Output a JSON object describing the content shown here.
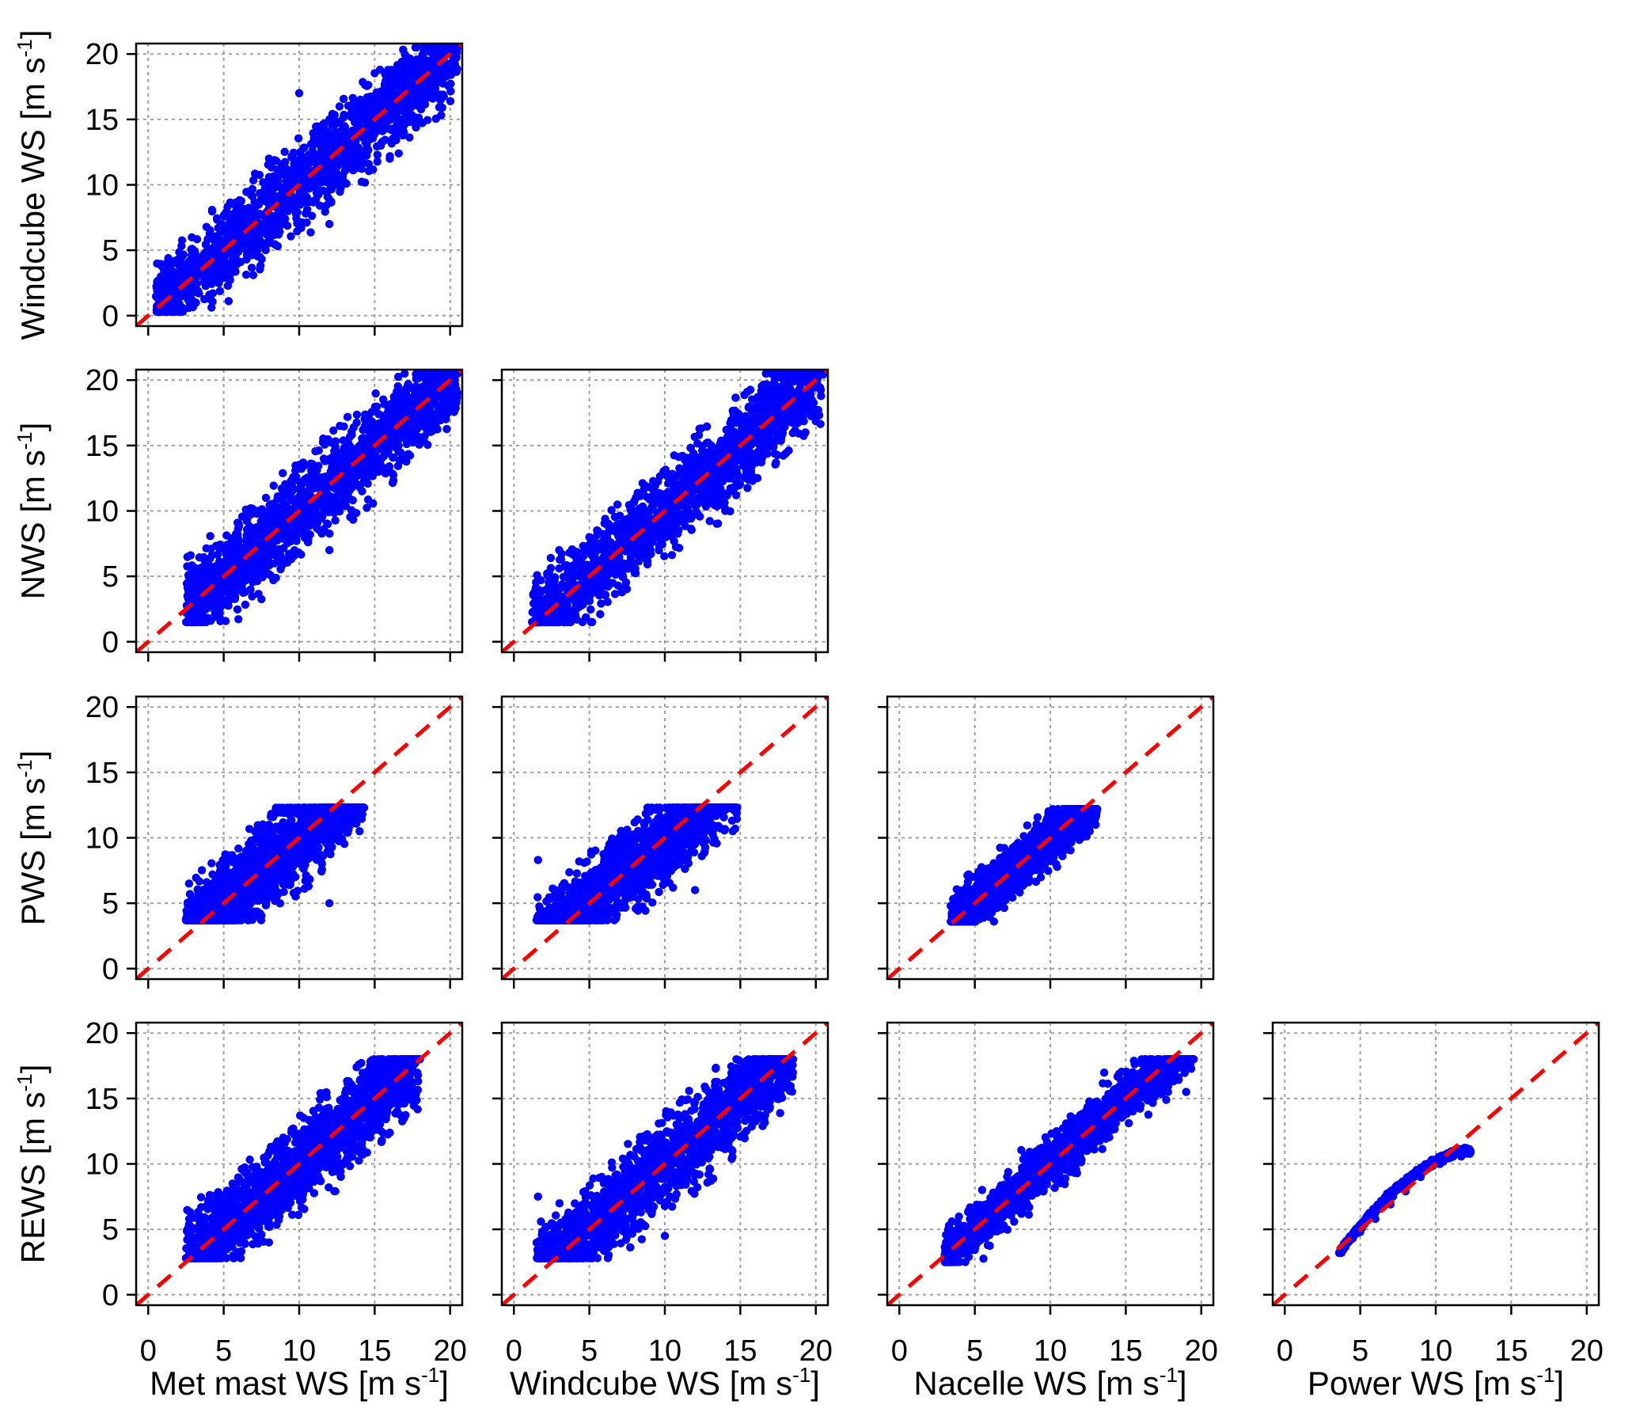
{
  "colors": {
    "points": "#0000ff",
    "identity_line": "#ff0000",
    "grid": "#a0a0a0",
    "frame": "#000000"
  },
  "axis_titles": {
    "x": [
      "Met mast WS [m s",
      "Windcube WS [m s",
      "Nacelle WS [m s",
      "Power WS [m s"
    ],
    "y": [
      "Windcube WS [m s",
      "NWS [m s",
      "PWS [m s",
      "REWS [m s"
    ],
    "unit_superscript": "-1",
    "unit_close": "]"
  },
  "chart_data": {
    "type": "scatter",
    "layout": "lower-triangular scatter-plot matrix",
    "grid": true,
    "identity_line": {
      "style": "dashed",
      "slope": 1,
      "intercept": 0
    },
    "xlim": [
      0,
      20
    ],
    "ylim": [
      0,
      20
    ],
    "ticks": [
      0,
      5,
      10,
      15,
      20
    ],
    "panels": [
      {
        "row": "Windcube WS",
        "col": "Met mast WS",
        "x_range": [
          0.5,
          20.5
        ],
        "y_range": [
          0.3,
          20.5
        ],
        "approx_points": [
          [
            1,
            0.6
          ],
          [
            3,
            2
          ],
          [
            5,
            4
          ],
          [
            7,
            6
          ],
          [
            9,
            8
          ],
          [
            11,
            10
          ],
          [
            13,
            12
          ],
          [
            15,
            14.5
          ],
          [
            17,
            17
          ],
          [
            19,
            19
          ],
          [
            8,
            12
          ],
          [
            12,
            7
          ],
          [
            10,
            17
          ],
          [
            16,
            12
          ]
        ]
      },
      {
        "row": "NWS",
        "col": "Met mast WS",
        "x_range": [
          2.5,
          20.5
        ],
        "y_range": [
          1.5,
          20.5
        ],
        "approx_points": [
          [
            2.6,
            3.5
          ],
          [
            4,
            3
          ],
          [
            6,
            6
          ],
          [
            8,
            8
          ],
          [
            10,
            10
          ],
          [
            12,
            11
          ],
          [
            14,
            13
          ],
          [
            16,
            15
          ],
          [
            18,
            18
          ],
          [
            20,
            19
          ],
          [
            6,
            9
          ],
          [
            12,
            7
          ]
        ]
      },
      {
        "row": "NWS",
        "col": "Windcube WS",
        "x_range": [
          1.2,
          20.5
        ],
        "y_range": [
          1.5,
          20.5
        ],
        "approx_points": [
          [
            1.5,
            4
          ],
          [
            3,
            7
          ],
          [
            5,
            8
          ],
          [
            7,
            9
          ],
          [
            9,
            10
          ],
          [
            11,
            11
          ],
          [
            13,
            12
          ],
          [
            15,
            14
          ],
          [
            17,
            16
          ],
          [
            19,
            19
          ],
          [
            3,
            2
          ],
          [
            14,
            10
          ]
        ]
      },
      {
        "row": "PWS",
        "col": "Met mast WS",
        "x_range": [
          2.5,
          14.3
        ],
        "y_range": [
          3.7,
          12.3
        ],
        "approx_points": [
          [
            2.5,
            3.8
          ],
          [
            4,
            4.5
          ],
          [
            6,
            6
          ],
          [
            8,
            8
          ],
          [
            10,
            10
          ],
          [
            12,
            10
          ],
          [
            14,
            10.5
          ],
          [
            8,
            11
          ],
          [
            10,
            12
          ],
          [
            12,
            5
          ]
        ]
      },
      {
        "row": "PWS",
        "col": "Windcube WS",
        "x_range": [
          1.5,
          14.8
        ],
        "y_range": [
          3.7,
          12.3
        ],
        "approx_points": [
          [
            1.6,
            8.3
          ],
          [
            3,
            4
          ],
          [
            5,
            7
          ],
          [
            7,
            8
          ],
          [
            9,
            9
          ],
          [
            11,
            10
          ],
          [
            13,
            11
          ],
          [
            14.5,
            10.5
          ],
          [
            9,
            12
          ],
          [
            12,
            6
          ]
        ]
      },
      {
        "row": "PWS",
        "col": "Nacelle WS",
        "x_range": [
          3.4,
          13.1
        ],
        "y_range": [
          3.6,
          12.2
        ],
        "approx_points": [
          [
            3.5,
            3.6
          ],
          [
            5,
            4.8
          ],
          [
            7,
            6.8
          ],
          [
            9,
            8.6
          ],
          [
            11,
            10.3
          ],
          [
            12.5,
            11.5
          ],
          [
            13,
            11
          ]
        ]
      },
      {
        "row": "REWS",
        "col": "Met mast WS",
        "x_range": [
          2.5,
          18.0
        ],
        "y_range": [
          2.8,
          18.0
        ],
        "approx_points": [
          [
            2.6,
            3.5
          ],
          [
            5,
            5
          ],
          [
            7,
            7
          ],
          [
            9,
            8.5
          ],
          [
            11,
            10.5
          ],
          [
            13,
            12
          ],
          [
            15,
            13.5
          ],
          [
            17,
            16
          ],
          [
            18,
            18
          ],
          [
            8,
            4
          ]
        ]
      },
      {
        "row": "REWS",
        "col": "Windcube WS",
        "x_range": [
          1.5,
          18.5
        ],
        "y_range": [
          2.8,
          18.0
        ],
        "approx_points": [
          [
            1.6,
            7.5
          ],
          [
            3,
            4
          ],
          [
            5,
            6
          ],
          [
            7,
            8
          ],
          [
            9,
            9
          ],
          [
            11,
            10.5
          ],
          [
            13,
            12
          ],
          [
            15,
            14
          ],
          [
            17,
            16
          ],
          [
            18,
            17
          ],
          [
            10,
            4.5
          ]
        ]
      },
      {
        "row": "REWS",
        "col": "Nacelle WS",
        "x_range": [
          3.0,
          19.5
        ],
        "y_range": [
          2.5,
          18.0
        ],
        "approx_points": [
          [
            3,
            3
          ],
          [
            5,
            5
          ],
          [
            7,
            7
          ],
          [
            9,
            9
          ],
          [
            11,
            10.7
          ],
          [
            13,
            12.5
          ],
          [
            15,
            14.5
          ],
          [
            17,
            16
          ],
          [
            18,
            18
          ],
          [
            19,
            15.5
          ]
        ]
      },
      {
        "row": "REWS",
        "col": "Power WS",
        "x_range": [
          3.6,
          12.3
        ],
        "y_range": [
          3.2,
          11.0
        ],
        "approx_points": [
          [
            3.6,
            3.2
          ],
          [
            5,
            4.8
          ],
          [
            6,
            5.8
          ],
          [
            7,
            6.9
          ],
          [
            8,
            7.9
          ],
          [
            9,
            9
          ],
          [
            10,
            10.1
          ],
          [
            11,
            10.8
          ],
          [
            12,
            11
          ]
        ]
      }
    ]
  }
}
